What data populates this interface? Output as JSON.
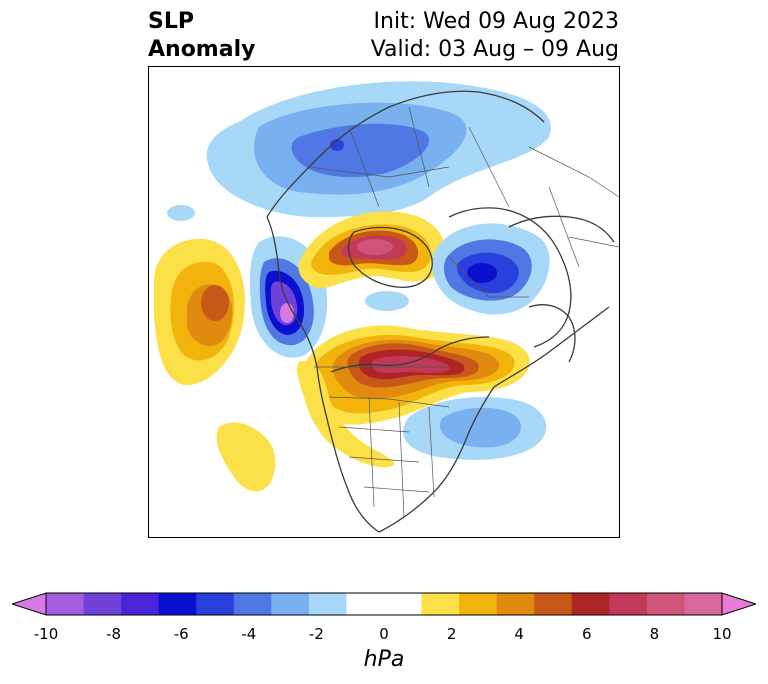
{
  "header": {
    "title_line1": "SLP",
    "title_line2": "Anomaly",
    "init_text": "Init: Wed 09 Aug 2023",
    "valid_text": "Valid: 03 Aug – 09 Aug"
  },
  "map": {
    "variable": "Sea level pressure anomaly",
    "projection": "polar stereographic",
    "features": [
      "coastlines",
      "country-borders",
      "state-borders"
    ]
  },
  "colorbar": {
    "unit": "hPa",
    "tick_labels": [
      "-10",
      "-8",
      "-6",
      "-4",
      "-2",
      "0",
      "2",
      "4",
      "6",
      "8",
      "10"
    ],
    "min": -10,
    "max": 10,
    "extend": "both",
    "colors": [
      "#d87ae6",
      "#a65ee0",
      "#7040d8",
      "#4a24d6",
      "#0a10d0",
      "#2a40dc",
      "#5078e4",
      "#78b0f0",
      "#a8d8f8",
      "#ffffff",
      "#ffffff",
      "#fbe048",
      "#f2b40c",
      "#e08a10",
      "#c85818",
      "#b02428",
      "#c03a58",
      "#d05478",
      "#d868a0",
      "#e87ad8"
    ]
  }
}
